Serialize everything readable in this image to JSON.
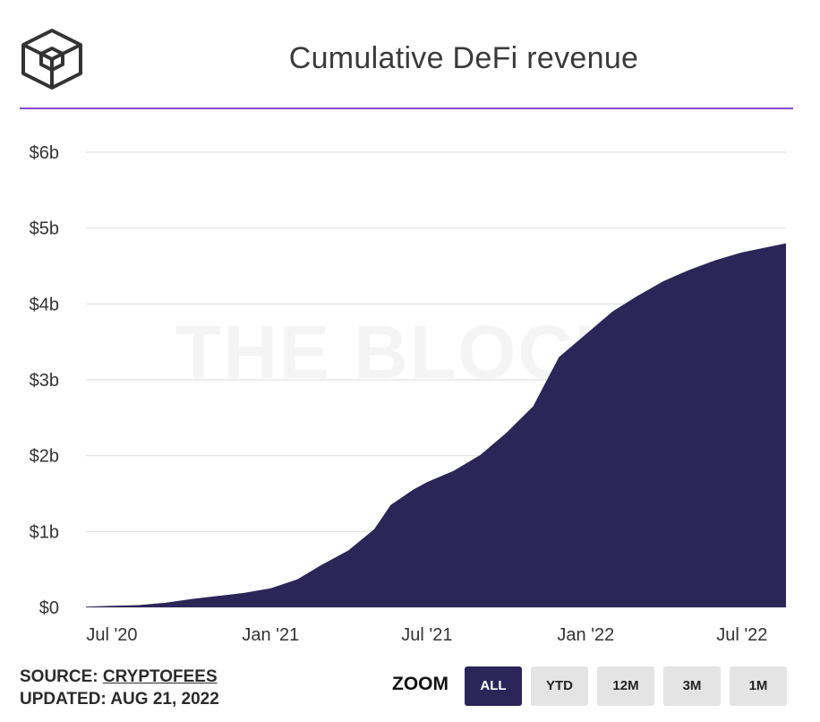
{
  "header": {
    "title": "Cumulative DeFi revenue",
    "logo_icon": "the-block-cube-logo"
  },
  "watermark": "THE BLOCK",
  "colors": {
    "area_fill": "#2b2558",
    "divider": "#8a4cc8",
    "gridline": "#e6e6e6",
    "active_button": "#2b2558",
    "inactive_button": "#e4e4e4"
  },
  "chart_data": {
    "type": "area",
    "title": "Cumulative DeFi revenue",
    "xlabel": "",
    "ylabel": "",
    "y_unit": "USD billions",
    "ylim": [
      0,
      6
    ],
    "y_ticks": [
      0,
      1,
      2,
      3,
      4,
      5,
      6
    ],
    "y_tick_labels": [
      "$0",
      "$1b",
      "$2b",
      "$3b",
      "$4b",
      "$5b",
      "$6b"
    ],
    "x_range": [
      "2020-06-01",
      "2022-08-21"
    ],
    "x_ticks": [
      "2020-07-01",
      "2021-01-01",
      "2021-07-01",
      "2022-01-01",
      "2022-07-01"
    ],
    "x_tick_labels": [
      "Jul '20",
      "Jan '21",
      "Jul '21",
      "Jan '22",
      "Jul '22"
    ],
    "grid": true,
    "legend": false,
    "series": [
      {
        "points": [
          [
            "2020-06-01",
            0.01
          ],
          [
            "2020-07-01",
            0.02
          ],
          [
            "2020-08-01",
            0.03
          ],
          [
            "2020-09-01",
            0.06
          ],
          [
            "2020-10-01",
            0.11
          ],
          [
            "2020-11-01",
            0.15
          ],
          [
            "2020-12-01",
            0.19
          ],
          [
            "2021-01-01",
            0.25
          ],
          [
            "2021-02-01",
            0.37
          ],
          [
            "2021-03-01",
            0.56
          ],
          [
            "2021-04-01",
            0.75
          ],
          [
            "2021-05-01",
            1.03
          ],
          [
            "2021-05-20",
            1.35
          ],
          [
            "2021-06-15",
            1.55
          ],
          [
            "2021-07-01",
            1.65
          ],
          [
            "2021-08-01",
            1.8
          ],
          [
            "2021-09-01",
            2.01
          ],
          [
            "2021-10-01",
            2.3
          ],
          [
            "2021-11-01",
            2.65
          ],
          [
            "2021-12-01",
            3.3
          ],
          [
            "2022-01-01",
            3.6
          ],
          [
            "2022-02-01",
            3.9
          ],
          [
            "2022-03-01",
            4.1
          ],
          [
            "2022-04-01",
            4.3
          ],
          [
            "2022-05-01",
            4.45
          ],
          [
            "2022-06-01",
            4.58
          ],
          [
            "2022-07-01",
            4.68
          ],
          [
            "2022-08-21",
            4.8
          ]
        ]
      }
    ]
  },
  "footer": {
    "source_label": "SOURCE:",
    "source_link": "CRYPTOFEES",
    "updated": "UPDATED: AUG 21, 2022",
    "zoom_label": "ZOOM",
    "zoom_options": [
      "ALL",
      "YTD",
      "12M",
      "3M",
      "1M"
    ],
    "zoom_active": "ALL"
  }
}
